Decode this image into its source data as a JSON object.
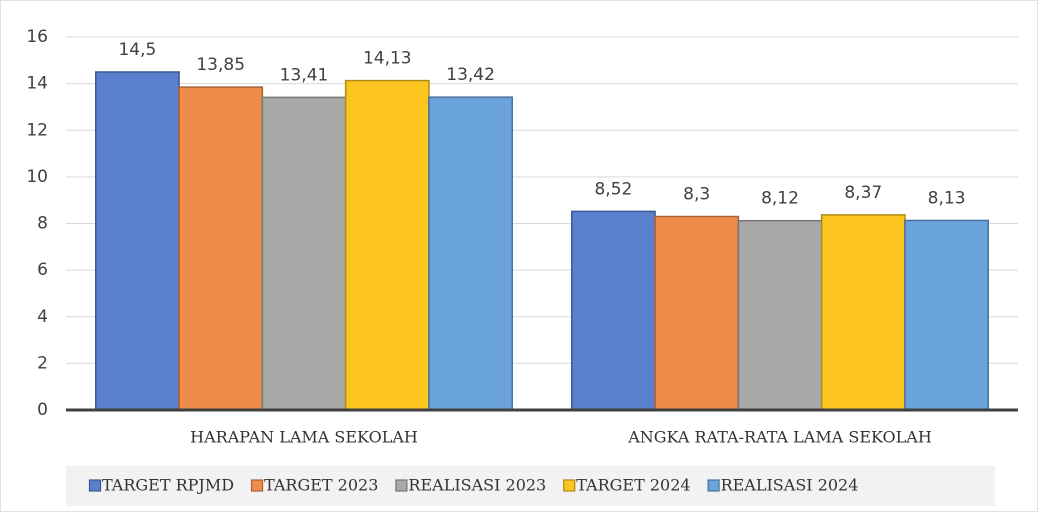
{
  "chart_data": {
    "type": "bar",
    "categories": [
      "HARAPAN LAMA SEKOLAH",
      "ANGKA RATA-RATA LAMA SEKOLAH"
    ],
    "series": [
      {
        "name": "TARGET RPJMD",
        "color": "#5a7fcd",
        "values": [
          14.5,
          8.52
        ],
        "value_labels": [
          "14,5",
          "8,52"
        ]
      },
      {
        "name": "TARGET 2023",
        "color": "#ee8c4b",
        "values": [
          13.85,
          8.3
        ],
        "value_labels": [
          "13,85",
          "8,3"
        ]
      },
      {
        "name": "REALISASI 2023",
        "color": "#a9a9a9",
        "values": [
          13.41,
          8.12
        ],
        "value_labels": [
          "13,41",
          "8,12"
        ]
      },
      {
        "name": "TARGET 2024",
        "color": "#fcc520",
        "values": [
          14.13,
          8.37
        ],
        "value_labels": [
          "14,13",
          "8,37"
        ]
      },
      {
        "name": "REALISASI 2024",
        "color": "#6aa3dc",
        "values": [
          13.42,
          8.13
        ],
        "value_labels": [
          "13,42",
          "8,13"
        ]
      }
    ],
    "ylim": [
      0,
      16
    ],
    "yticks": [
      0,
      2,
      4,
      6,
      8,
      10,
      12,
      14,
      16
    ],
    "grid": true,
    "legend": "bottom"
  }
}
